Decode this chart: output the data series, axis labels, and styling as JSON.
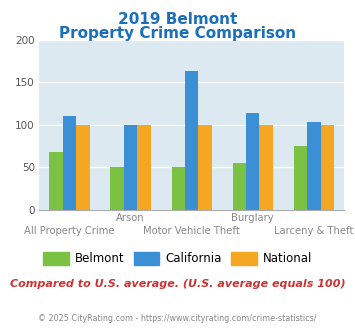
{
  "title_line1": "2019 Belmont",
  "title_line2": "Property Crime Comparison",
  "title_color": "#1a6fbb",
  "categories": [
    "All Property Crime",
    "Arson",
    "Motor Vehicle Theft",
    "Burglary",
    "Larceny & Theft"
  ],
  "xtick_top": [
    "",
    "Arson",
    "",
    "Burglary",
    ""
  ],
  "xtick_bottom": [
    "All Property Crime",
    "",
    "Motor Vehicle Theft",
    "",
    "Larceny & Theft"
  ],
  "belmont": [
    68,
    50,
    50,
    55,
    75
  ],
  "california": [
    110,
    100,
    163,
    114,
    103
  ],
  "national": [
    100,
    100,
    100,
    100,
    100
  ],
  "belmont_color": "#7bc143",
  "california_color": "#3b8fd4",
  "national_color": "#f5a623",
  "ylim": [
    0,
    200
  ],
  "yticks": [
    0,
    50,
    100,
    150,
    200
  ],
  "bg_color": "#dce9f0",
  "grid_color": "#ffffff",
  "legend_labels": [
    "Belmont",
    "California",
    "National"
  ],
  "note_text": "Compared to U.S. average. (U.S. average equals 100)",
  "note_color": "#cc3333",
  "footer_text": "© 2025 CityRating.com - https://www.cityrating.com/crime-statistics/",
  "footer_color": "#888888",
  "bar_width": 0.22,
  "fig_bg": "#ffffff"
}
